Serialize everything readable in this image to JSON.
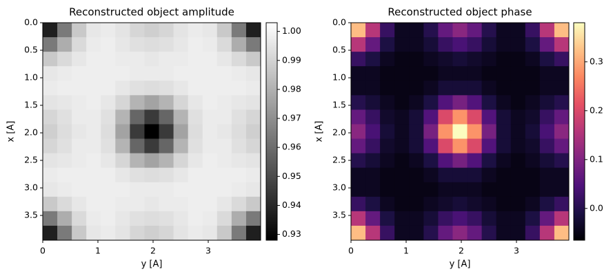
{
  "chart_data": [
    {
      "type": "heatmap",
      "title": "Reconstructed object amplitude",
      "xlabel": "y [A]",
      "ylabel": "x [A]",
      "xlim": [
        0,
        3.95
      ],
      "ylim": [
        0,
        3.95
      ],
      "y_inverted": true,
      "xticks": [
        {
          "value": 0,
          "label": "0"
        },
        1,
        2,
        3
      ],
      "yticks": [
        {
          "value": 0,
          "label": "0.0"
        },
        0.5,
        {
          "value": 1,
          "label": "1.0"
        },
        1.5,
        {
          "value": 2,
          "label": "2.0"
        },
        2.5,
        {
          "value": 3,
          "label": "3.0"
        },
        3.5
      ],
      "zlim": [
        0.928,
        1.003
      ],
      "colorbar_ticks": [
        0.93,
        0.94,
        0.95,
        0.96,
        0.97,
        0.98,
        0.99,
        {
          "value": 1,
          "label": "1.00"
        }
      ],
      "colors": [
        "#000000",
        "#ffffff"
      ],
      "z": [
        [
          0.937,
          0.964,
          0.987,
          0.996,
          0.997,
          0.995,
          0.991,
          0.989,
          0.991,
          0.995,
          0.997,
          0.996,
          0.987,
          0.964,
          0.937
        ],
        [
          0.964,
          0.979,
          0.992,
          0.997,
          0.998,
          0.996,
          0.994,
          0.993,
          0.994,
          0.996,
          0.998,
          0.997,
          0.992,
          0.979,
          0.964
        ],
        [
          0.987,
          0.992,
          0.996,
          0.998,
          0.998,
          0.997,
          0.997,
          0.996,
          0.997,
          0.997,
          0.998,
          0.998,
          0.996,
          0.992,
          0.987
        ],
        [
          0.996,
          0.997,
          0.998,
          0.998,
          0.998,
          0.998,
          0.997,
          0.997,
          0.997,
          0.998,
          0.998,
          0.998,
          0.998,
          0.997,
          0.996
        ],
        [
          0.997,
          0.998,
          0.998,
          0.998,
          0.998,
          0.996,
          0.994,
          0.993,
          0.994,
          0.996,
          0.998,
          0.998,
          0.998,
          0.998,
          0.997
        ],
        [
          0.995,
          0.996,
          0.997,
          0.998,
          0.996,
          0.991,
          0.981,
          0.976,
          0.981,
          0.991,
          0.996,
          0.998,
          0.997,
          0.996,
          0.995
        ],
        [
          0.991,
          0.994,
          0.997,
          0.997,
          0.994,
          0.981,
          0.958,
          0.945,
          0.958,
          0.981,
          0.994,
          0.997,
          0.997,
          0.994,
          0.991
        ],
        [
          0.989,
          0.993,
          0.996,
          0.997,
          0.993,
          0.976,
          0.945,
          0.928,
          0.945,
          0.976,
          0.993,
          0.997,
          0.996,
          0.993,
          0.989
        ],
        [
          0.991,
          0.994,
          0.997,
          0.997,
          0.994,
          0.981,
          0.958,
          0.945,
          0.958,
          0.981,
          0.994,
          0.997,
          0.997,
          0.994,
          0.991
        ],
        [
          0.995,
          0.996,
          0.997,
          0.998,
          0.996,
          0.991,
          0.981,
          0.976,
          0.981,
          0.991,
          0.996,
          0.998,
          0.997,
          0.996,
          0.995
        ],
        [
          0.997,
          0.998,
          0.998,
          0.998,
          0.998,
          0.996,
          0.994,
          0.993,
          0.994,
          0.996,
          0.998,
          0.998,
          0.998,
          0.998,
          0.997
        ],
        [
          0.996,
          0.997,
          0.998,
          0.998,
          0.998,
          0.998,
          0.997,
          0.997,
          0.997,
          0.998,
          0.998,
          0.998,
          0.998,
          0.997,
          0.996
        ],
        [
          0.987,
          0.992,
          0.996,
          0.998,
          0.998,
          0.997,
          0.997,
          0.996,
          0.997,
          0.997,
          0.998,
          0.998,
          0.996,
          0.992,
          0.987
        ],
        [
          0.964,
          0.979,
          0.992,
          0.997,
          0.998,
          0.996,
          0.994,
          0.993,
          0.994,
          0.996,
          0.998,
          0.997,
          0.992,
          0.979,
          0.964
        ],
        [
          0.937,
          0.964,
          0.987,
          0.996,
          0.997,
          0.995,
          0.991,
          0.989,
          0.991,
          0.995,
          0.997,
          0.996,
          0.987,
          0.964,
          0.937
        ]
      ]
    },
    {
      "type": "heatmap",
      "title": "Reconstructed object phase",
      "xlabel": "y [A]",
      "ylabel": "x [A]",
      "xlim": [
        0,
        3.95
      ],
      "ylim": [
        0,
        3.95
      ],
      "y_inverted": true,
      "xticks": [
        {
          "value": 0,
          "label": "0"
        },
        1,
        2,
        3
      ],
      "yticks": [
        {
          "value": 0,
          "label": "0.0"
        },
        0.5,
        {
          "value": 1,
          "label": "1.0"
        },
        1.5,
        {
          "value": 2,
          "label": "2.0"
        },
        2.5,
        {
          "value": 3,
          "label": "3.0"
        },
        3.5
      ],
      "zlim": [
        -0.065,
        0.38
      ],
      "colorbar_ticks": [
        {
          "value": 0,
          "label": "0.0"
        },
        0.1,
        0.2,
        0.3
      ],
      "colors": [
        "#000004",
        "#1c1044",
        "#4f127b",
        "#812581",
        "#b5367a",
        "#e55064",
        "#fb8761",
        "#fec287",
        "#fcfdbf"
      ],
      "z": [
        [
          0.32,
          0.16,
          0.02,
          -0.04,
          -0.04,
          0,
          0.07,
          0.11,
          0.07,
          0,
          -0.04,
          -0.04,
          0.02,
          0.16,
          0.32
        ],
        [
          0.16,
          0.07,
          -0.01,
          -0.04,
          -0.04,
          -0.02,
          0.02,
          0.04,
          0.02,
          -0.02,
          -0.04,
          -0.04,
          -0.01,
          0.07,
          0.16
        ],
        [
          0.02,
          -0.01,
          -0.04,
          -0.05,
          -0.05,
          -0.04,
          -0.03,
          -0.02,
          -0.03,
          -0.04,
          -0.05,
          -0.05,
          -0.04,
          -0.01,
          0.02
        ],
        [
          -0.04,
          -0.04,
          -0.05,
          -0.05,
          -0.05,
          -0.05,
          -0.04,
          -0.04,
          -0.04,
          -0.05,
          -0.05,
          -0.05,
          -0.05,
          -0.04,
          -0.04
        ],
        [
          -0.04,
          -0.04,
          -0.05,
          -0.05,
          -0.05,
          -0.04,
          -0.02,
          -0.02,
          -0.02,
          -0.04,
          -0.05,
          -0.05,
          -0.05,
          -0.04,
          -0.04
        ],
        [
          0,
          -0.02,
          -0.04,
          -0.05,
          -0.04,
          -0.01,
          0.05,
          0.09,
          0.05,
          -0.01,
          -0.04,
          -0.05,
          -0.04,
          -0.02,
          0
        ],
        [
          0.07,
          0.02,
          -0.03,
          -0.04,
          -0.02,
          0.05,
          0.2,
          0.28,
          0.2,
          0.05,
          -0.02,
          -0.04,
          -0.03,
          0.02,
          0.07
        ],
        [
          0.11,
          0.04,
          -0.02,
          -0.04,
          -0.02,
          0.09,
          0.28,
          0.38,
          0.28,
          0.09,
          -0.02,
          -0.04,
          -0.02,
          0.04,
          0.11
        ],
        [
          0.07,
          0.02,
          -0.03,
          -0.04,
          -0.02,
          0.05,
          0.2,
          0.28,
          0.2,
          0.05,
          -0.02,
          -0.04,
          -0.03,
          0.02,
          0.07
        ],
        [
          0,
          -0.02,
          -0.04,
          -0.05,
          -0.04,
          -0.01,
          0.05,
          0.09,
          0.05,
          -0.01,
          -0.04,
          -0.05,
          -0.04,
          -0.02,
          0
        ],
        [
          -0.04,
          -0.04,
          -0.05,
          -0.05,
          -0.05,
          -0.04,
          -0.02,
          -0.02,
          -0.02,
          -0.04,
          -0.05,
          -0.05,
          -0.05,
          -0.04,
          -0.04
        ],
        [
          -0.04,
          -0.04,
          -0.05,
          -0.05,
          -0.05,
          -0.05,
          -0.04,
          -0.04,
          -0.04,
          -0.05,
          -0.05,
          -0.05,
          -0.05,
          -0.04,
          -0.04
        ],
        [
          0.02,
          -0.01,
          -0.04,
          -0.05,
          -0.05,
          -0.04,
          -0.03,
          -0.02,
          -0.03,
          -0.04,
          -0.05,
          -0.05,
          -0.04,
          -0.01,
          0.02
        ],
        [
          0.16,
          0.07,
          -0.01,
          -0.04,
          -0.04,
          -0.02,
          0.02,
          0.04,
          0.02,
          -0.02,
          -0.04,
          -0.04,
          -0.01,
          0.07,
          0.16
        ],
        [
          0.32,
          0.16,
          0.02,
          -0.04,
          -0.04,
          0,
          0.07,
          0.11,
          0.07,
          0,
          -0.04,
          -0.04,
          0.02,
          0.16,
          0.32
        ]
      ]
    }
  ]
}
